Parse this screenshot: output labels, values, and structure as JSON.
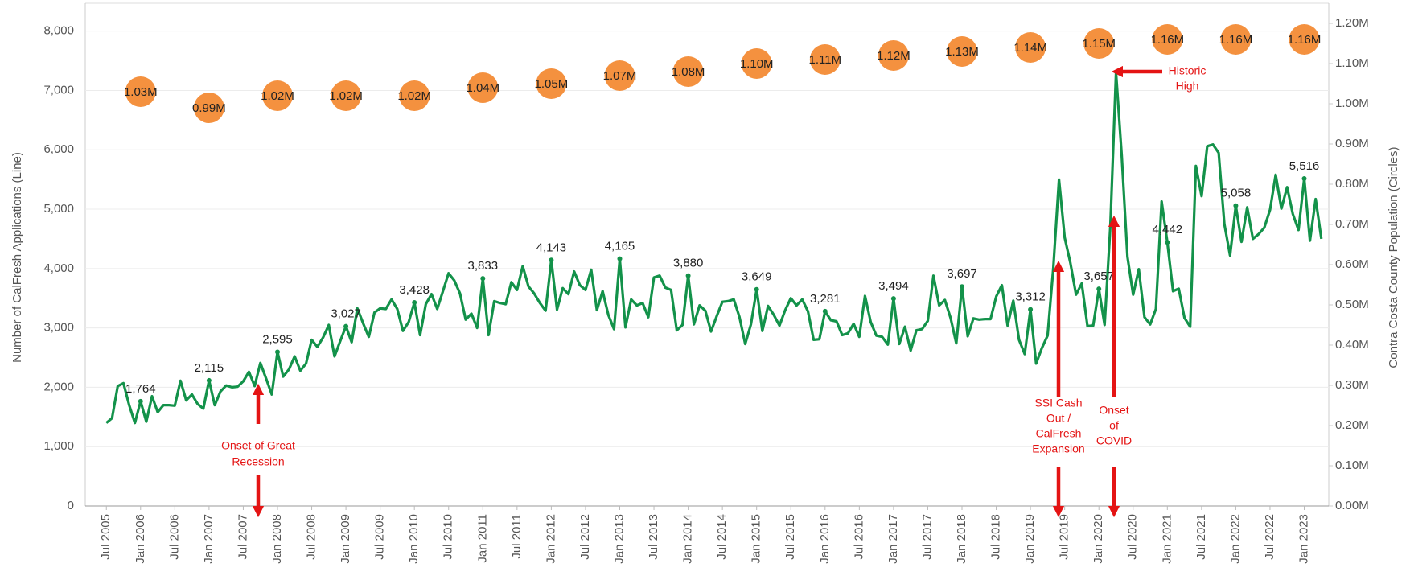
{
  "chart_data": {
    "type": "line",
    "y_label": "Number of CalFresh Applications (Line)",
    "y2_label": "Contra Costa County Population (Circles)",
    "categories": [
      "Jul 2005",
      null,
      null,
      null,
      null,
      null,
      "Jan 2006",
      null,
      null,
      null,
      null,
      null,
      "Jul 2006",
      null,
      null,
      null,
      null,
      null,
      "Jan 2007",
      null,
      null,
      null,
      null,
      null,
      "Jul 2007",
      null,
      null,
      null,
      null,
      null,
      "Jan 2008",
      null,
      null,
      null,
      null,
      null,
      "Jul 2008",
      null,
      null,
      null,
      null,
      null,
      "Jan 2009",
      null,
      null,
      null,
      null,
      null,
      "Jul 2009",
      null,
      null,
      null,
      null,
      null,
      "Jan 2010",
      null,
      null,
      null,
      null,
      null,
      "Jul 2010",
      null,
      null,
      null,
      null,
      null,
      "Jan 2011",
      null,
      null,
      null,
      null,
      null,
      "Jul 2011",
      null,
      null,
      null,
      null,
      null,
      "Jan 2012",
      null,
      null,
      null,
      null,
      null,
      "Jul 2012",
      null,
      null,
      null,
      null,
      null,
      "Jan 2013",
      null,
      null,
      null,
      null,
      null,
      "Jul 2013",
      null,
      null,
      null,
      null,
      null,
      "Jan 2014",
      null,
      null,
      null,
      null,
      null,
      "Jul 2014",
      null,
      null,
      null,
      null,
      null,
      "Jan 2015",
      null,
      null,
      null,
      null,
      null,
      "Jul 2015",
      null,
      null,
      null,
      null,
      null,
      "Jan 2016",
      null,
      null,
      null,
      null,
      null,
      "Jul 2016",
      null,
      null,
      null,
      null,
      null,
      "Jan 2017",
      null,
      null,
      null,
      null,
      null,
      "Jul 2017",
      null,
      null,
      null,
      null,
      null,
      "Jan 2018",
      null,
      null,
      null,
      null,
      null,
      "Jul 2018",
      null,
      null,
      null,
      null,
      null,
      "Jan 2019",
      null,
      null,
      null,
      null,
      null,
      "Jul 2019",
      null,
      null,
      null,
      null,
      null,
      "Jan 2020",
      null,
      null,
      null,
      null,
      null,
      "Jul 2020",
      null,
      null,
      null,
      null,
      null,
      "Jan 2021",
      null,
      null,
      null,
      null,
      null,
      "Jul 2021",
      null,
      null,
      null,
      null,
      null,
      "Jan 2022",
      null,
      null,
      null,
      null,
      null,
      "Jul 2022",
      null,
      null,
      null,
      null,
      null,
      "Jan 2023",
      null,
      null,
      null
    ],
    "series": [
      {
        "color": "#13924a",
        "values": [
          1400,
          1480,
          2020,
          2070,
          1700,
          1400,
          1764,
          1420,
          1850,
          1580,
          1700,
          1700,
          1690,
          2110,
          1780,
          1880,
          1720,
          1640,
          2115,
          1700,
          1930,
          2030,
          2000,
          2010,
          2100,
          2260,
          2020,
          2410,
          2150,
          1880,
          2595,
          2180,
          2300,
          2520,
          2280,
          2400,
          2800,
          2680,
          2840,
          3050,
          2520,
          2780,
          3027,
          2760,
          3330,
          3080,
          2850,
          3260,
          3330,
          3320,
          3480,
          3320,
          2950,
          3100,
          3428,
          2880,
          3400,
          3570,
          3320,
          3620,
          3920,
          3800,
          3580,
          3140,
          3240,
          3000,
          3833,
          2880,
          3450,
          3420,
          3400,
          3770,
          3640,
          4040,
          3700,
          3580,
          3420,
          3290,
          4143,
          3310,
          3670,
          3570,
          3950,
          3720,
          3640,
          3980,
          3300,
          3620,
          3220,
          2980,
          4165,
          3010,
          3480,
          3380,
          3420,
          3180,
          3850,
          3880,
          3680,
          3640,
          2960,
          3050,
          3880,
          3060,
          3380,
          3290,
          2940,
          3200,
          3440,
          3450,
          3480,
          3180,
          2730,
          3060,
          3649,
          2950,
          3370,
          3220,
          3040,
          3300,
          3500,
          3380,
          3480,
          3280,
          2800,
          2810,
          3281,
          3130,
          3110,
          2880,
          2910,
          3070,
          2850,
          3540,
          3100,
          2870,
          2850,
          2720,
          3494,
          2730,
          3020,
          2620,
          2960,
          2980,
          3120,
          3880,
          3380,
          3470,
          3170,
          2740,
          3697,
          2860,
          3160,
          3140,
          3150,
          3150,
          3530,
          3720,
          3040,
          3460,
          2800,
          2560,
          3312,
          2400,
          2660,
          2870,
          4000,
          5500,
          4520,
          4100,
          3560,
          3750,
          3030,
          3040,
          3657,
          3050,
          4700,
          7300,
          5900,
          4200,
          3560,
          3990,
          3180,
          3060,
          3320,
          5130,
          4442,
          3620,
          3660,
          3170,
          3020,
          5730,
          5220,
          6060,
          6090,
          5950,
          4750,
          4220,
          5058,
          4450,
          5030,
          4500,
          4580,
          4690,
          4990,
          5580,
          5010,
          5370,
          4920,
          4650,
          5516,
          4470,
          5170,
          4500
        ],
        "value_labels": [
          null,
          null,
          null,
          null,
          null,
          null,
          "1,764",
          null,
          null,
          null,
          null,
          null,
          null,
          null,
          null,
          null,
          null,
          null,
          "2,115",
          null,
          null,
          null,
          null,
          null,
          null,
          null,
          null,
          null,
          null,
          null,
          "2,595",
          null,
          null,
          null,
          null,
          null,
          null,
          null,
          null,
          null,
          null,
          null,
          "3,027",
          null,
          null,
          null,
          null,
          null,
          null,
          null,
          null,
          null,
          null,
          null,
          "3,428",
          null,
          null,
          null,
          null,
          null,
          null,
          null,
          null,
          null,
          null,
          null,
          "3,833",
          null,
          null,
          null,
          null,
          null,
          null,
          null,
          null,
          null,
          null,
          null,
          "4,143",
          null,
          null,
          null,
          null,
          null,
          null,
          null,
          null,
          null,
          null,
          null,
          "4,165",
          null,
          null,
          null,
          null,
          null,
          null,
          null,
          null,
          null,
          null,
          null,
          "3,880",
          null,
          null,
          null,
          null,
          null,
          null,
          null,
          null,
          null,
          null,
          null,
          "3,649",
          null,
          null,
          null,
          null,
          null,
          null,
          null,
          null,
          null,
          null,
          null,
          "3,281",
          null,
          null,
          null,
          null,
          null,
          null,
          null,
          null,
          null,
          null,
          null,
          "3,494",
          null,
          null,
          null,
          null,
          null,
          null,
          null,
          null,
          null,
          null,
          null,
          "3,697",
          null,
          null,
          null,
          null,
          null,
          null,
          null,
          null,
          null,
          null,
          null,
          "3,312",
          null,
          null,
          null,
          null,
          null,
          null,
          null,
          null,
          null,
          null,
          null,
          "3,657",
          null,
          null,
          null,
          null,
          null,
          null,
          null,
          null,
          null,
          null,
          null,
          "4,442",
          null,
          null,
          null,
          null,
          null,
          null,
          null,
          null,
          null,
          null,
          null,
          "5,058",
          null,
          null,
          null,
          null,
          null,
          null,
          null,
          null,
          null,
          null,
          null,
          "5,516",
          null,
          null,
          null
        ]
      },
      {
        "type": "scatter",
        "axis": "y2",
        "color": "#f4913f",
        "values": [
          null,
          null,
          null,
          null,
          null,
          null,
          1030000,
          null,
          null,
          null,
          null,
          null,
          null,
          null,
          null,
          null,
          null,
          null,
          990000,
          null,
          null,
          null,
          null,
          null,
          null,
          null,
          null,
          null,
          null,
          null,
          1020000,
          null,
          null,
          null,
          null,
          null,
          null,
          null,
          null,
          null,
          null,
          null,
          1020000,
          null,
          null,
          null,
          null,
          null,
          null,
          null,
          null,
          null,
          null,
          null,
          1020000,
          null,
          null,
          null,
          null,
          null,
          null,
          null,
          null,
          null,
          null,
          null,
          1040000,
          null,
          null,
          null,
          null,
          null,
          null,
          null,
          null,
          null,
          null,
          null,
          1050000,
          null,
          null,
          null,
          null,
          null,
          null,
          null,
          null,
          null,
          null,
          null,
          1070000,
          null,
          null,
          null,
          null,
          null,
          null,
          null,
          null,
          null,
          null,
          null,
          1080000,
          null,
          null,
          null,
          null,
          null,
          null,
          null,
          null,
          null,
          null,
          null,
          1100000,
          null,
          null,
          null,
          null,
          null,
          null,
          null,
          null,
          null,
          null,
          null,
          1110000,
          null,
          null,
          null,
          null,
          null,
          null,
          null,
          null,
          null,
          null,
          null,
          1120000,
          null,
          null,
          null,
          null,
          null,
          null,
          null,
          null,
          null,
          null,
          null,
          1130000,
          null,
          null,
          null,
          null,
          null,
          null,
          null,
          null,
          null,
          null,
          null,
          1140000,
          null,
          null,
          null,
          null,
          null,
          null,
          null,
          null,
          null,
          null,
          null,
          1150000,
          null,
          null,
          null,
          null,
          null,
          null,
          null,
          null,
          null,
          null,
          null,
          1160000,
          null,
          null,
          null,
          null,
          null,
          null,
          null,
          null,
          null,
          null,
          null,
          1160000,
          null,
          null,
          null,
          null,
          null,
          null,
          null,
          null,
          null,
          null,
          null,
          1160000,
          null,
          null,
          null
        ],
        "value_labels": [
          null,
          null,
          null,
          null,
          null,
          null,
          "1.03M",
          null,
          null,
          null,
          null,
          null,
          null,
          null,
          null,
          null,
          null,
          null,
          "0.99M",
          null,
          null,
          null,
          null,
          null,
          null,
          null,
          null,
          null,
          null,
          null,
          "1.02M",
          null,
          null,
          null,
          null,
          null,
          null,
          null,
          null,
          null,
          null,
          null,
          "1.02M",
          null,
          null,
          null,
          null,
          null,
          null,
          null,
          null,
          null,
          null,
          null,
          "1.02M",
          null,
          null,
          null,
          null,
          null,
          null,
          null,
          null,
          null,
          null,
          null,
          "1.04M",
          null,
          null,
          null,
          null,
          null,
          null,
          null,
          null,
          null,
          null,
          null,
          "1.05M",
          null,
          null,
          null,
          null,
          null,
          null,
          null,
          null,
          null,
          null,
          null,
          "1.07M",
          null,
          null,
          null,
          null,
          null,
          null,
          null,
          null,
          null,
          null,
          null,
          "1.08M",
          null,
          null,
          null,
          null,
          null,
          null,
          null,
          null,
          null,
          null,
          null,
          "1.10M",
          null,
          null,
          null,
          null,
          null,
          null,
          null,
          null,
          null,
          null,
          null,
          "1.11M",
          null,
          null,
          null,
          null,
          null,
          null,
          null,
          null,
          null,
          null,
          null,
          "1.12M",
          null,
          null,
          null,
          null,
          null,
          null,
          null,
          null,
          null,
          null,
          null,
          "1.13M",
          null,
          null,
          null,
          null,
          null,
          null,
          null,
          null,
          null,
          null,
          null,
          "1.14M",
          null,
          null,
          null,
          null,
          null,
          null,
          null,
          null,
          null,
          null,
          null,
          "1.15M",
          null,
          null,
          null,
          null,
          null,
          null,
          null,
          null,
          null,
          null,
          null,
          "1.16M",
          null,
          null,
          null,
          null,
          null,
          null,
          null,
          null,
          null,
          null,
          null,
          "1.16M",
          null,
          null,
          null,
          null,
          null,
          null,
          null,
          null,
          null,
          null,
          null,
          "1.16M",
          null,
          null,
          null
        ]
      }
    ],
    "ylim": [
      0,
      8470
    ],
    "yticks": [
      0,
      {
        "value": 1000,
        "label": "1,000"
      },
      {
        "value": 2000,
        "label": "2,000"
      },
      {
        "value": 3000,
        "label": "3,000"
      },
      {
        "value": 4000,
        "label": "4,000"
      },
      {
        "value": 5000,
        "label": "5,000"
      },
      {
        "value": 6000,
        "label": "6,000"
      },
      {
        "value": 7000,
        "label": "7,000"
      },
      {
        "value": 8000,
        "label": "8,000"
      }
    ],
    "y2lim": [
      0,
      1250000
    ],
    "y2ticks": [
      {
        "value": 0,
        "label": "0.00M"
      },
      {
        "value": 100000,
        "label": "0.10M"
      },
      {
        "value": 200000,
        "label": "0.20M"
      },
      {
        "value": 300000,
        "label": "0.30M"
      },
      {
        "value": 400000,
        "label": "0.40M"
      },
      {
        "value": 500000,
        "label": "0.50M"
      },
      {
        "value": 600000,
        "label": "0.60M"
      },
      {
        "value": 700000,
        "label": "0.70M"
      },
      {
        "value": 800000,
        "label": "0.80M"
      },
      {
        "value": 900000,
        "label": "0.90M"
      },
      {
        "value": 1000000,
        "label": "1.00M"
      },
      {
        "value": 1100000,
        "label": "1.10M"
      },
      {
        "value": 1200000,
        "label": "1.20M"
      }
    ],
    "grid": true,
    "annotations": [
      {
        "text": [
          "Onset of Great",
          "Recession"
        ]
      },
      {
        "text": [
          "SSI Cash",
          "Out /",
          "CalFresh",
          "Expansion"
        ]
      },
      {
        "text": [
          "Onset",
          "of",
          "COVID"
        ]
      },
      {
        "text": [
          "Historic",
          "High"
        ]
      }
    ]
  }
}
